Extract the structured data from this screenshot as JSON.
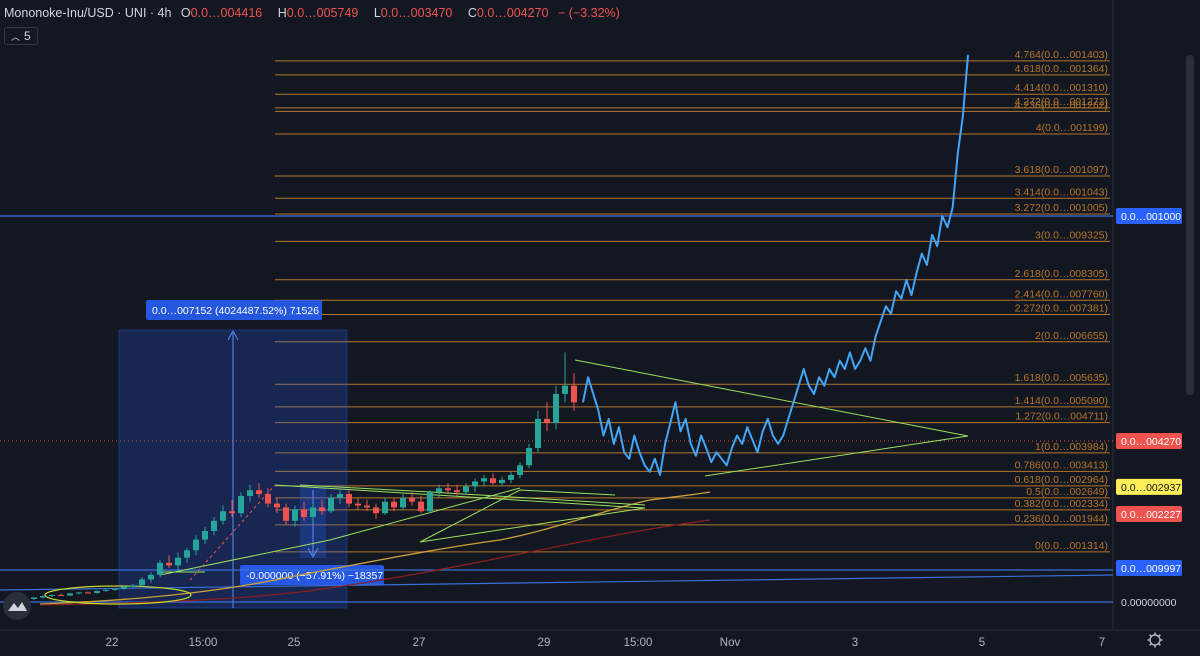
{
  "legend": {
    "symbol": "Mononoke-Inu/USD · UNI · 4h",
    "open_label": "O",
    "open": "0.0…004416",
    "high_label": "H",
    "high": "0.0…005749",
    "low_label": "L",
    "low": "0.0…003470",
    "close_label": "C",
    "close": "0.0…004270",
    "change": "− (−3.32%)"
  },
  "indicator_toggle": {
    "icon": "chevron-up-icon",
    "count": "5"
  },
  "settings_icon": "gear-icon",
  "logo_icon": "tradingview-cloud-icon",
  "colors": {
    "background": "#131722",
    "up_candle": "#26a69a",
    "down_candle": "#ef5350",
    "line_series": "#42a5f5",
    "fib": "#b5762a",
    "triangle": "#9be15d",
    "hline": "#2962ff",
    "ma_yellow": "#c9a13b",
    "ma_red": "#8b1e1e"
  },
  "chart_data": {
    "type": "line",
    "x_ticks": [
      "22",
      "15:00",
      "25",
      "27",
      "29",
      "15:00",
      "Nov",
      "3",
      "5",
      "7"
    ],
    "fib_levels": [
      {
        "ratio": "4.764",
        "price": 0.001403,
        "label": "4.764(0.0…001403)"
      },
      {
        "ratio": "4.618",
        "price": 0.001364,
        "label": "4.618(0.0…001364)"
      },
      {
        "ratio": "4.414",
        "price": 0.00131,
        "label": "4.414(0.0…001310)"
      },
      {
        "ratio": "4.272",
        "price": 0.001272,
        "label": "4.272(0.0…001272)"
      },
      {
        "ratio": "4.236",
        "price": 0.001262,
        "label": "4.236(0.0…001262)"
      },
      {
        "ratio": "4",
        "price": 0.001199,
        "label": "4(0.0…001199)"
      },
      {
        "ratio": "3.618",
        "price": 0.001097,
        "label": "3.618(0.0…001097)"
      },
      {
        "ratio": "3.414",
        "price": 0.001043,
        "label": "3.414(0.0…001043)"
      },
      {
        "ratio": "3.272",
        "price": 0.001005,
        "label": "3.272(0.0…001005)"
      },
      {
        "ratio": "3",
        "price": 0.0009325,
        "label": "3(0.0…009325)"
      },
      {
        "ratio": "2.618",
        "price": 0.0008305,
        "label": "2.618(0.0…008305)"
      },
      {
        "ratio": "2.414",
        "price": 0.000776,
        "label": "2.414(0.0…007760)"
      },
      {
        "ratio": "2.272",
        "price": 0.0007381,
        "label": "2.272(0.0…007381)"
      },
      {
        "ratio": "2",
        "price": 0.0006655,
        "label": "2(0.0…006655)"
      },
      {
        "ratio": "1.618",
        "price": 0.0005635,
        "label": "1.618(0.0…005635)"
      },
      {
        "ratio": "1.414",
        "price": 0.000509,
        "label": "1.414(0.0…005090)"
      },
      {
        "ratio": "1.272",
        "price": 0.0004711,
        "label": "1.272(0.0…004711)"
      },
      {
        "ratio": "1",
        "price": 0.0003984,
        "label": "1(0.0…003984)"
      },
      {
        "ratio": "0.786",
        "price": 0.0003413,
        "label": "0.786(0.0…003413)"
      },
      {
        "ratio": "0.618",
        "price": 0.0002964,
        "label": "0.618(0.0…002964)"
      },
      {
        "ratio": "0.5",
        "price": 0.0002649,
        "label": "0.5(0.0…002649)"
      },
      {
        "ratio": "0.382",
        "price": 0.0002334,
        "label": "0.382(0.0…002334)"
      },
      {
        "ratio": "0.236",
        "price": 0.0001944,
        "label": "0.236(0.0…001944)"
      },
      {
        "ratio": "0",
        "price": 0.0001314,
        "label": "0(0.0…001314)"
      }
    ],
    "price_tags": [
      {
        "label": "0.0…001000",
        "price": 0.001,
        "style": "blue"
      },
      {
        "label": "0.0…004270",
        "price": 0.000427,
        "style": "red"
      },
      {
        "label": "0.0…002937",
        "price": 0.0002937,
        "style": "yellow"
      },
      {
        "label": "0.0…002227",
        "price": 0.0002227,
        "style": "red"
      },
      {
        "label": "0.0…009997",
        "price": 9.997e-05,
        "style": "blue"
      },
      {
        "label": "0.00000000",
        "price": 6.5e-06,
        "style": "plain"
      }
    ],
    "measure_labels": {
      "up": "0.0…007152 (4024487.52%) 71526",
      "down": "-0.000000 (−57.91%) −18357"
    },
    "candles": [
      [
        1.2e-05,
        1.6e-05,
        1e-05,
        1.5e-05
      ],
      [
        1.5e-05,
        2e-05,
        1.3e-05,
        1.8e-05
      ],
      [
        1.8e-05,
        2.4e-05,
        1.6e-05,
        2.2e-05
      ],
      [
        2.2e-05,
        2.7e-05,
        1.9e-05,
        2e-05
      ],
      [
        2e-05,
        3e-05,
        1.8e-05,
        2.8e-05
      ],
      [
        2.8e-05,
        3.4e-05,
        2.5e-05,
        3.2e-05
      ],
      [
        3.2e-05,
        3.6e-05,
        2.8e-05,
        3e-05
      ],
      [
        3e-05,
        4e-05,
        2.8e-05,
        3.8e-05
      ],
      [
        3.8e-05,
        4.5e-05,
        3.4e-05,
        4.2e-05
      ],
      [
        4.2e-05,
        5e-05,
        3.8e-05,
        4.6e-05
      ],
      [
        4.6e-05,
        5.8e-05,
        4.2e-05,
        5.5e-05
      ],
      [
        5.5e-05,
        6.5e-05,
        5e-05,
        6e-05
      ],
      [
        6e-05,
        8e-05,
        5.5e-05,
        7.5e-05
      ],
      [
        7.5e-05,
        9e-05,
        6.8e-05,
        8.5e-05
      ],
      [
        8.5e-05,
        0.000115,
        8e-05,
        0.00011
      ],
      [
        0.00011,
        0.000125,
        0.0001,
        0.000105
      ],
      [
        0.000105,
        0.00013,
        9.5e-05,
        0.00012
      ],
      [
        0.00012,
        0.00014,
        0.00011,
        0.000135
      ],
      [
        0.000135,
        0.00017,
        0.000125,
        0.00016
      ],
      [
        0.00016,
        0.00019,
        0.00015,
        0.00018
      ],
      [
        0.00018,
        0.000215,
        0.00017,
        0.000205
      ],
      [
        0.000205,
        0.000245,
        0.000195,
        0.00023
      ],
      [
        0.00023,
        0.00026,
        0.000215,
        0.000225
      ],
      [
        0.000225,
        0.00028,
        0.000215,
        0.00027
      ],
      [
        0.00027,
        0.0003,
        0.000255,
        0.000285
      ],
      [
        0.000285,
        0.000305,
        0.000265,
        0.000275
      ],
      [
        0.000275,
        0.00029,
        0.00024,
        0.00025
      ],
      [
        0.00025,
        0.000265,
        0.000225,
        0.00024
      ],
      [
        0.00024,
        0.00025,
        0.000195,
        0.000205
      ],
      [
        0.000205,
        0.000245,
        0.00019,
        0.000235
      ],
      [
        0.000235,
        0.000255,
        0.000205,
        0.000215
      ],
      [
        0.000215,
        0.00025,
        0.0002,
        0.00024
      ],
      [
        0.00024,
        0.00026,
        0.00022,
        0.00023
      ],
      [
        0.00023,
        0.000275,
        0.000225,
        0.000265
      ],
      [
        0.000265,
        0.000285,
        0.00025,
        0.000275
      ],
      [
        0.000275,
        0.000285,
        0.00024,
        0.00025
      ],
      [
        0.00025,
        0.000265,
        0.000235,
        0.000245
      ],
      [
        0.000245,
        0.00026,
        0.00023,
        0.00024
      ],
      [
        0.00024,
        0.00025,
        0.00021,
        0.000225
      ],
      [
        0.000225,
        0.000265,
        0.00022,
        0.000255
      ],
      [
        0.000255,
        0.000265,
        0.00023,
        0.00024
      ],
      [
        0.00024,
        0.000275,
        0.000235,
        0.000265
      ],
      [
        0.000265,
        0.00028,
        0.000245,
        0.000255
      ],
      [
        0.000255,
        0.00027,
        0.000225,
        0.00023
      ],
      [
        0.00023,
        0.000285,
        0.000225,
        0.00028
      ],
      [
        0.00028,
        0.0003,
        0.000265,
        0.00029
      ],
      [
        0.00029,
        0.000305,
        0.000275,
        0.000285
      ],
      [
        0.000285,
        0.0003,
        0.00027,
        0.00028
      ],
      [
        0.00028,
        0.000305,
        0.000275,
        0.000295
      ],
      [
        0.000295,
        0.00032,
        0.00028,
        0.00031
      ],
      [
        0.00031,
        0.00033,
        0.000295,
        0.00032
      ],
      [
        0.00032,
        0.000335,
        0.0003,
        0.000305
      ],
      [
        0.000305,
        0.000325,
        0.000295,
        0.000315
      ],
      [
        0.000315,
        0.00034,
        0.000305,
        0.00033
      ],
      [
        0.00033,
        0.00037,
        0.00032,
        0.00036
      ],
      [
        0.00036,
        0.00042,
        0.00035,
        0.00041
      ],
      [
        0.00041,
        0.0005,
        0.0004,
        0.00048
      ],
      [
        0.00048,
        0.00052,
        0.00045,
        0.00047
      ],
      [
        0.00047,
        0.00056,
        0.000455,
        0.00054
      ],
      [
        0.00054,
        0.00064,
        0.00052,
        0.00056
      ],
      [
        0.00056,
        0.00059,
        0.0005,
        0.00052
      ]
    ],
    "line_series": [
      0.00052,
      0.00058,
      0.00054,
      0.0005,
      0.00044,
      0.00048,
      0.00042,
      0.00046,
      0.0004,
      0.00038,
      0.00044,
      0.0004,
      0.00036,
      0.00034,
      0.00038,
      0.00033,
      0.00042,
      0.00047,
      0.00052,
      0.00045,
      0.00048,
      0.00042,
      0.00039,
      0.00044,
      0.00041,
      0.00037,
      0.0004,
      0.00038,
      0.00036,
      0.00041,
      0.00044,
      0.00042,
      0.00046,
      0.00043,
      0.0004,
      0.00045,
      0.00048,
      0.00044,
      0.00042,
      0.00044,
      0.00048,
      0.00052,
      0.00056,
      0.0006,
      0.00056,
      0.00054,
      0.00058,
      0.00056,
      0.0006,
      0.00058,
      0.00062,
      0.0006,
      0.00064,
      0.0006,
      0.00062,
      0.00065,
      0.00062,
      0.00068,
      0.00072,
      0.00076,
      0.00074,
      0.0008,
      0.00078,
      0.00083,
      0.00079,
      0.00085,
      0.0009,
      0.00087,
      0.00095,
      0.00092,
      0.001,
      0.00097,
      0.00102,
      0.00115,
      0.00125,
      0.00142
    ]
  }
}
